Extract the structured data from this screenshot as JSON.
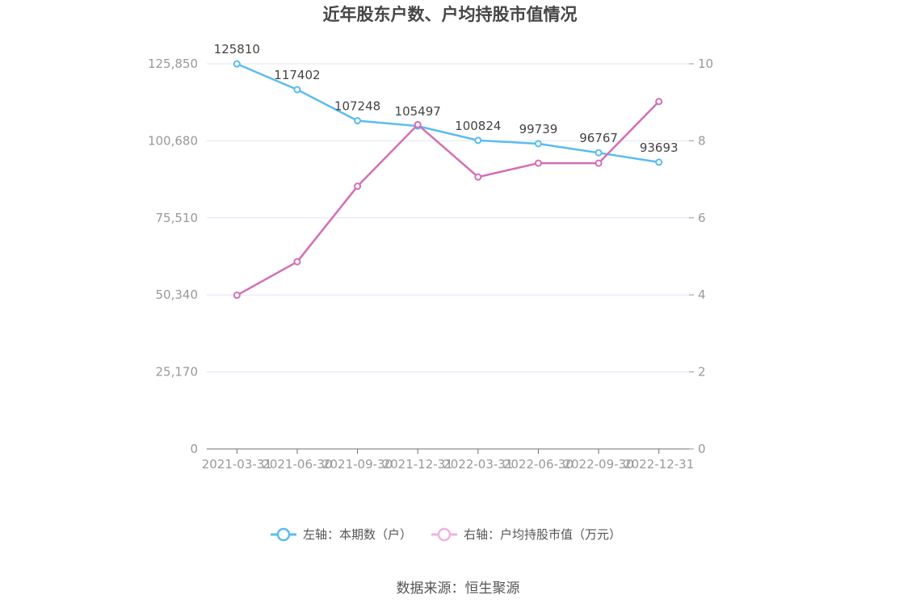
{
  "chart_data": {
    "type": "line",
    "title": "近年股东户数、户均持股市值情况",
    "categories": [
      "2021-03-31",
      "2021-06-30",
      "2021-09-30",
      "2021-12-31",
      "2022-03-31",
      "2022-06-30",
      "2022-09-30",
      "2022-12-31"
    ],
    "left_axis": {
      "ticks": [
        "0",
        "25,170",
        "50,340",
        "75,510",
        "100,680",
        "125,850"
      ],
      "ylim": [
        0,
        125850
      ]
    },
    "right_axis": {
      "ticks": [
        "0",
        "2",
        "4",
        "6",
        "8",
        "10"
      ],
      "ylim": [
        0,
        10
      ]
    },
    "series": [
      {
        "name": "左轴：本期数（户）",
        "axis": "left",
        "color": "#5bbcf0",
        "values": [
          125810,
          117402,
          107248,
          105497,
          100824,
          99739,
          96767,
          93693
        ],
        "labels": [
          "125810",
          "117402",
          "107248",
          "105497",
          "100824",
          "99739",
          "96767",
          "93693"
        ]
      },
      {
        "name": "右轴：户均持股市值（万元）",
        "axis": "right",
        "color": "#d36fb4",
        "values": [
          3.99,
          4.86,
          6.82,
          8.42,
          7.06,
          7.42,
          7.42,
          9.02
        ]
      }
    ],
    "grid": true,
    "legend_position": "bottom"
  },
  "source": "数据来源：恒生聚源"
}
